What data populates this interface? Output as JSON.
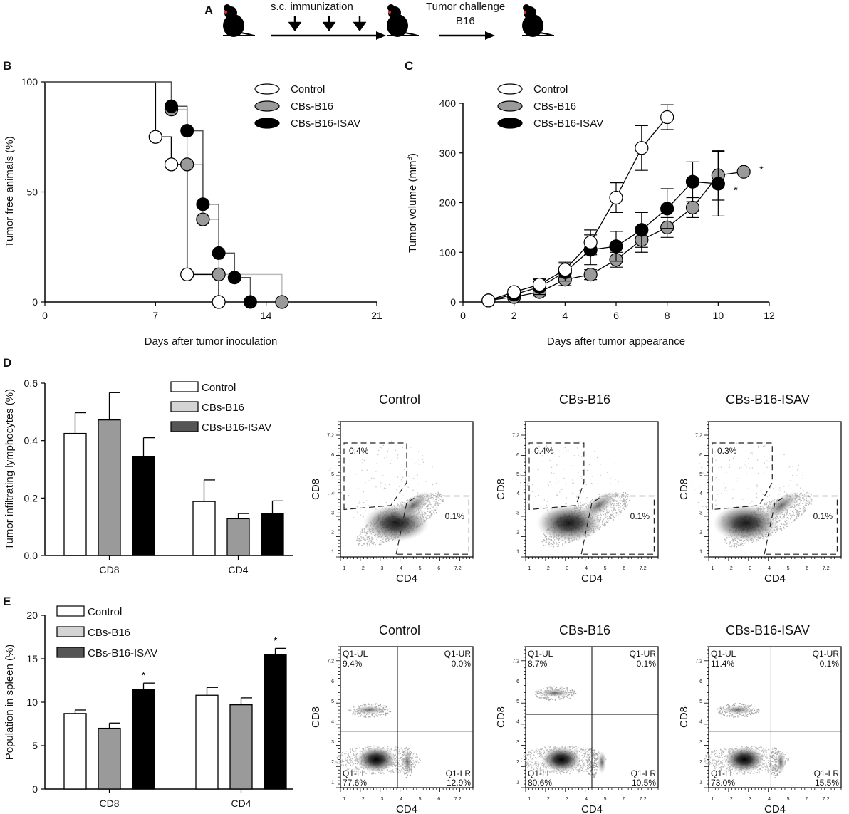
{
  "panels": {
    "a": "A",
    "b": "B",
    "c": "C",
    "d": "D",
    "e": "E"
  },
  "schematic": {
    "immunization": "s.c. immunization",
    "challenge": "Tumor challenge",
    "challenge_cell": "B16"
  },
  "legend": {
    "control": "Control",
    "cbs_b16": "CBs-B16",
    "cbs_isav": "CBs-B16-ISAV"
  },
  "colors": {
    "control": "#ffffff",
    "cbs_b16": "#9a9a9a",
    "cbs_isav": "#000000",
    "cbs_b16_light": "#d4d4d4",
    "cbs_isav_dark": "#555555"
  },
  "icons": [
    "mouse-icon",
    "down-arrow-icon",
    "right-arrow-icon"
  ],
  "chart_data": [
    {
      "id": "survival",
      "type": "line",
      "title": "",
      "xlabel": "Days after tumor inoculation",
      "ylabel": "Tumor free animals (%)",
      "xlim": [
        0,
        21
      ],
      "ylim": [
        0,
        100
      ],
      "xticks": [
        0,
        7,
        14,
        21
      ],
      "yticks": [
        0,
        50,
        100
      ],
      "series": [
        {
          "name": "Control",
          "steps": [
            [
              0,
              100
            ],
            [
              7,
              75
            ],
            [
              8,
              62.5
            ],
            [
              9,
              12.5
            ],
            [
              11,
              0
            ]
          ],
          "markers": [
            [
              7,
              75
            ],
            [
              8,
              62.5
            ],
            [
              9,
              12.5
            ],
            [
              11,
              0
            ]
          ]
        },
        {
          "name": "CBs-B16",
          "steps": [
            [
              0,
              100
            ],
            [
              8,
              87.5
            ],
            [
              9,
              62.5
            ],
            [
              10,
              37.5
            ],
            [
              11,
              12.5
            ],
            [
              15,
              0
            ]
          ],
          "markers": [
            [
              8,
              87.5
            ],
            [
              9,
              62.5
            ],
            [
              10,
              37.5
            ],
            [
              11,
              12.5
            ],
            [
              15,
              0
            ]
          ]
        },
        {
          "name": "CBs-B16-ISAV",
          "steps": [
            [
              0,
              100
            ],
            [
              8,
              88.9
            ],
            [
              9,
              77.8
            ],
            [
              10,
              44.4
            ],
            [
              11,
              22.2
            ],
            [
              12,
              11.1
            ],
            [
              13,
              0
            ]
          ],
          "markers": [
            [
              8,
              88.9
            ],
            [
              9,
              77.8
            ],
            [
              10,
              44.4
            ],
            [
              11,
              22.2
            ],
            [
              12,
              11.1
            ],
            [
              13,
              0
            ]
          ]
        }
      ]
    },
    {
      "id": "tumor-volume",
      "type": "line",
      "title": "",
      "xlabel": "Days after tumor appearance",
      "ylabel": "Tumor volume (mm",
      "ylabel_sup": "3",
      "ylabel_close": ")",
      "xlim": [
        0,
        12
      ],
      "ylim": [
        0,
        400
      ],
      "xticks": [
        0,
        2,
        4,
        6,
        8,
        10,
        12
      ],
      "yticks": [
        0,
        100,
        200,
        300,
        400
      ],
      "annotations": [
        "*",
        "*"
      ],
      "series": [
        {
          "name": "Control",
          "x": [
            1,
            2,
            3,
            4,
            5,
            6,
            7,
            8
          ],
          "y": [
            3,
            20,
            35,
            65,
            120,
            210,
            310,
            372
          ],
          "err": [
            0,
            5,
            12,
            15,
            25,
            30,
            45,
            25
          ]
        },
        {
          "name": "CBs-B16",
          "x": [
            1,
            2,
            3,
            4,
            5,
            6,
            7,
            8,
            9,
            10,
            11
          ],
          "y": [
            3,
            10,
            20,
            45,
            55,
            85,
            125,
            150,
            190,
            255,
            262
          ],
          "err": [
            0,
            5,
            8,
            12,
            10,
            15,
            25,
            20,
            20,
            50,
            0
          ]
        },
        {
          "name": "CBs-B16-ISAV",
          "x": [
            1,
            2,
            3,
            4,
            5,
            6,
            7,
            8,
            9,
            10
          ],
          "y": [
            3,
            15,
            30,
            60,
            105,
            112,
            145,
            188,
            242,
            238
          ],
          "err": [
            0,
            5,
            15,
            18,
            30,
            30,
            35,
            40,
            40,
            65
          ]
        }
      ]
    },
    {
      "id": "infiltrating",
      "type": "bar",
      "title": "",
      "xlabel": "",
      "ylabel": "Tumor infiltrating lymphocytes (%)",
      "categories": [
        "CD8",
        "CD4"
      ],
      "ylim": [
        0,
        0.6
      ],
      "yticks": [
        0.0,
        0.2,
        0.4,
        0.6
      ],
      "ytick_labels": [
        "0.0",
        "0.2",
        "0.4",
        "0.6"
      ],
      "series": [
        {
          "name": "Control",
          "values": [
            0.425,
            0.188
          ],
          "err": [
            0.072,
            0.075
          ]
        },
        {
          "name": "CBs-B16",
          "values": [
            0.472,
            0.128
          ],
          "err": [
            0.095,
            0.018
          ]
        },
        {
          "name": "CBs-B16-ISAV",
          "values": [
            0.345,
            0.145
          ],
          "err": [
            0.065,
            0.045
          ]
        }
      ]
    },
    {
      "id": "spleen",
      "type": "bar",
      "title": "",
      "xlabel": "",
      "ylabel": "Population in spleen (%)",
      "categories": [
        "CD8",
        "CD4"
      ],
      "ylim": [
        0,
        20
      ],
      "yticks": [
        0,
        5,
        10,
        15,
        20
      ],
      "ytick_labels": [
        "0",
        "5",
        "10",
        "15",
        "20"
      ],
      "annotations": [
        "*",
        "*"
      ],
      "series": [
        {
          "name": "Control",
          "values": [
            8.7,
            10.8
          ],
          "err": [
            0.4,
            0.9
          ]
        },
        {
          "name": "CBs-B16",
          "values": [
            7.0,
            9.7
          ],
          "err": [
            0.6,
            0.8
          ]
        },
        {
          "name": "CBs-B16-ISAV",
          "values": [
            11.5,
            15.5
          ],
          "err": [
            0.7,
            0.7
          ]
        }
      ]
    }
  ],
  "flow_d": {
    "xlabel": "CD4",
    "ylabel": "CD8",
    "plots": [
      {
        "title": "Control",
        "ul": "0.4%",
        "lr": "0.1%"
      },
      {
        "title": "CBs-B16",
        "ul": "0.4%",
        "lr": "0.1%"
      },
      {
        "title": "CBs-B16-ISAV",
        "ul": "0.3%",
        "lr": "0.1%"
      }
    ]
  },
  "flow_e": {
    "xlabel": "CD4",
    "ylabel": "CD8",
    "plots": [
      {
        "title": "Control",
        "ul_name": "Q1-UL",
        "ul": "9.4%",
        "ur_name": "Q1-UR",
        "ur": "0.0%",
        "ll_name": "Q1-LL",
        "ll": "77.6%",
        "lr_name": "Q1-LR",
        "lr": "12.9%"
      },
      {
        "title": "CBs-B16",
        "ul_name": "Q1-UL",
        "ul": "8.7%",
        "ur_name": "Q1-UR",
        "ur": "0.1%",
        "ll_name": "Q1-LL",
        "ll": "80.6%",
        "lr_name": "Q1-LR",
        "lr": "10.5%"
      },
      {
        "title": "CBs-B16-ISAV",
        "ul_name": "Q1-UL",
        "ul": "11.4%",
        "ur_name": "Q1-UR",
        "ur": "0.1%",
        "ll_name": "Q1-LL",
        "ll": "73.0%",
        "lr_name": "Q1-LR",
        "lr": "15.5%"
      }
    ],
    "axis_ticks": [
      "1",
      "2",
      "3",
      "4",
      "5",
      "6",
      "7.2"
    ]
  }
}
